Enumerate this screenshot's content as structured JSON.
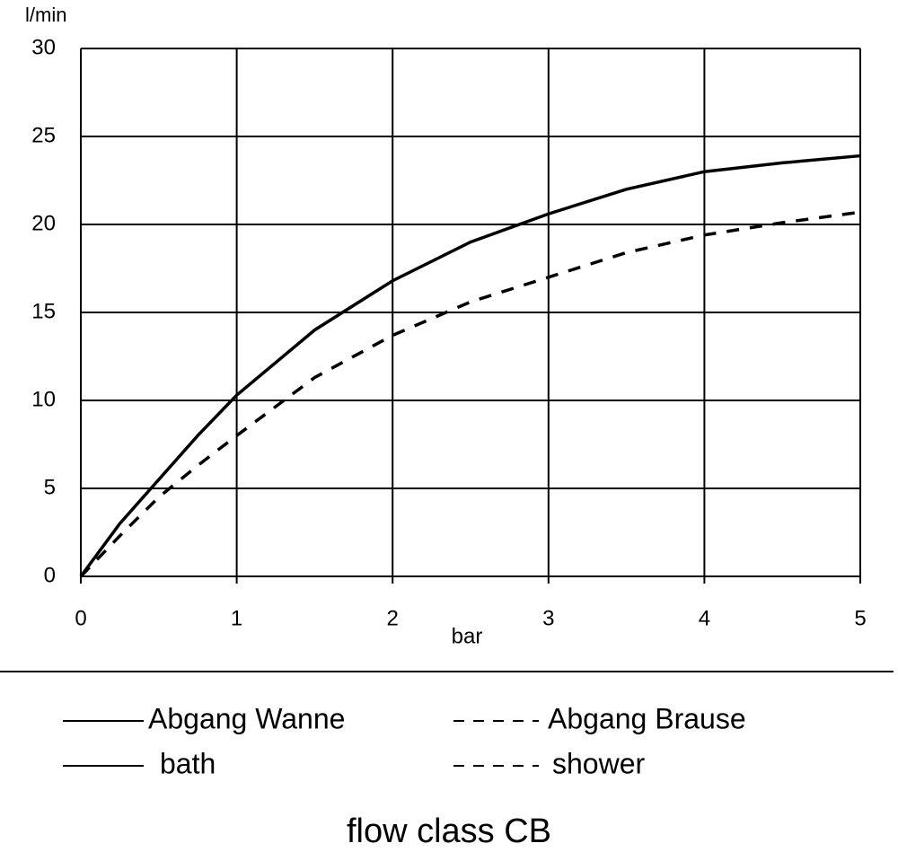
{
  "chart_data": {
    "type": "line",
    "title": "flow class CB",
    "xlabel": "bar",
    "ylabel": "l/min",
    "x": [
      0,
      0.25,
      0.5,
      0.75,
      1,
      1.5,
      2,
      2.5,
      3,
      3.5,
      4,
      4.5,
      5
    ],
    "series": [
      {
        "name": "Abgang Wanne",
        "alt_name": "bath",
        "color": "#000000",
        "style": "solid",
        "values": [
          0,
          3,
          5.5,
          8,
          10.3,
          14,
          16.8,
          19,
          20.6,
          22,
          23,
          23.5,
          23.9
        ]
      },
      {
        "name": "Abgang Brause",
        "alt_name": "shower",
        "color": "#000000",
        "style": "dashed",
        "values": [
          0,
          2.3,
          4.5,
          6.3,
          8,
          11.3,
          13.7,
          15.6,
          17,
          18.4,
          19.4,
          20.1,
          20.7
        ]
      }
    ],
    "xlim": [
      0,
      5
    ],
    "xticks": [
      0,
      1,
      2,
      3,
      4,
      5
    ],
    "ylim": [
      0,
      30
    ],
    "yticks": [
      0,
      5,
      10,
      15,
      20,
      25,
      30
    ],
    "grid": true
  }
}
